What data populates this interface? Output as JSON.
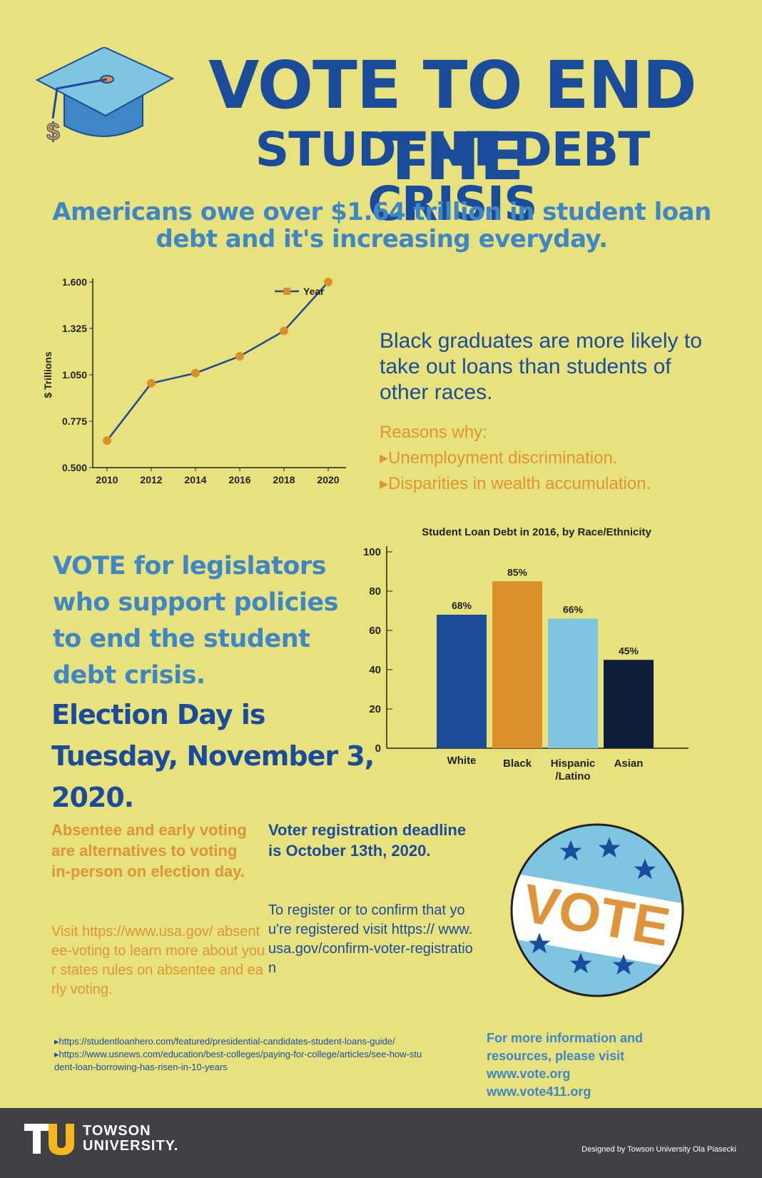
{
  "title": {
    "line1": "VOTE TO END THE",
    "line2": "STUDENT DEBT CRISIS"
  },
  "subtitle": "Americans owe over $1.64 trillion in student loan debt and it's increasing everyday.",
  "black_graduates": "Black graduates are more likely to take out loans than students of other races.",
  "reasons": {
    "heading": "Reasons why:",
    "items": [
      "▸Unemployment discrimination.",
      "▸Disparities in wealth accumulation."
    ]
  },
  "vote_legislators": "VOTE  for legislators who support  policies to end the student debt crisis.",
  "election_day": "Election Day is Tuesday, November 3, 2020.",
  "absentee": {
    "heading": "Absentee and early voting are alternatives to voting in-person on election day.",
    "body": "Visit https://www.usa.gov/ absentee-voting to learn more about your states rules on absentee and early voting."
  },
  "registration": {
    "heading": "Voter registration deadline is October 13th, 2020.",
    "body": "To register or to confirm that you're registered visit https:// www.usa.gov/confirm-voter-registration"
  },
  "sources": [
    "▸https://studentloanhero.com/featured/presidential-candidates-student-loans-guide/",
    "▸https://www.usnews.com/education/best-colleges/paying-for-college/articles/see-how-student-loan-borrowing-has-risen-in-10-years"
  ],
  "more_info": {
    "text": "For more information and resources, please visit",
    "links": [
      "www.vote.org",
      "www.vote411.org"
    ]
  },
  "badge": {
    "text": "VOTE"
  },
  "footer": {
    "logo_letters": "TU",
    "university": [
      "TOWSON",
      "UNIVERSITY."
    ],
    "designed_by": "Designed by Towson University Ola Piasecki"
  },
  "colors": {
    "background": "#e8e27e",
    "navy": "#1b4c9c",
    "blue": "#3f86c6",
    "orange": "#df9439",
    "light_blue": "#7fc5e1",
    "dark_navy": "#0e1e3a",
    "footer": "#414143",
    "gold": "#f3b61f"
  },
  "icons": [
    "graduation-cap-icon",
    "dollar-tassel-icon",
    "star-icon"
  ],
  "chart_data": [
    {
      "type": "line",
      "title": "",
      "xlabel": "",
      "ylabel": "$ Trillions",
      "x": [
        2010,
        2012,
        2014,
        2016,
        2018,
        2020
      ],
      "x_ticks": [
        "2010",
        "2012",
        "2014",
        "2016",
        "2018",
        "2020"
      ],
      "y_ticks": [
        "0.500",
        "0.775",
        "1.050",
        "1.325",
        "1.600"
      ],
      "ylim": [
        0.5,
        1.6
      ],
      "series": [
        {
          "name": "Year",
          "values": [
            0.66,
            1.0,
            1.06,
            1.16,
            1.31,
            1.6
          ]
        }
      ],
      "legend": "top-right",
      "grid": false
    },
    {
      "type": "bar",
      "title": "Student Loan Debt in 2016, by Race/Ethnicity",
      "categories": [
        "White",
        "Black",
        "Hispanic\n/Latino",
        "Asian"
      ],
      "category_lines": [
        [
          "White"
        ],
        [
          "Black"
        ],
        [
          "Hispanic",
          "/Latino"
        ],
        [
          "Asian"
        ]
      ],
      "values": [
        68,
        85,
        66,
        45
      ],
      "labels": [
        "68%",
        "85%",
        "66%",
        "45%"
      ],
      "colors": [
        "#1b4a98",
        "#dc902a",
        "#7fc5e1",
        "#0e1e3a"
      ],
      "y_ticks": [
        "0",
        "20",
        "40",
        "60",
        "80",
        "100"
      ],
      "ylim": [
        0,
        100
      ],
      "grid": false
    }
  ]
}
